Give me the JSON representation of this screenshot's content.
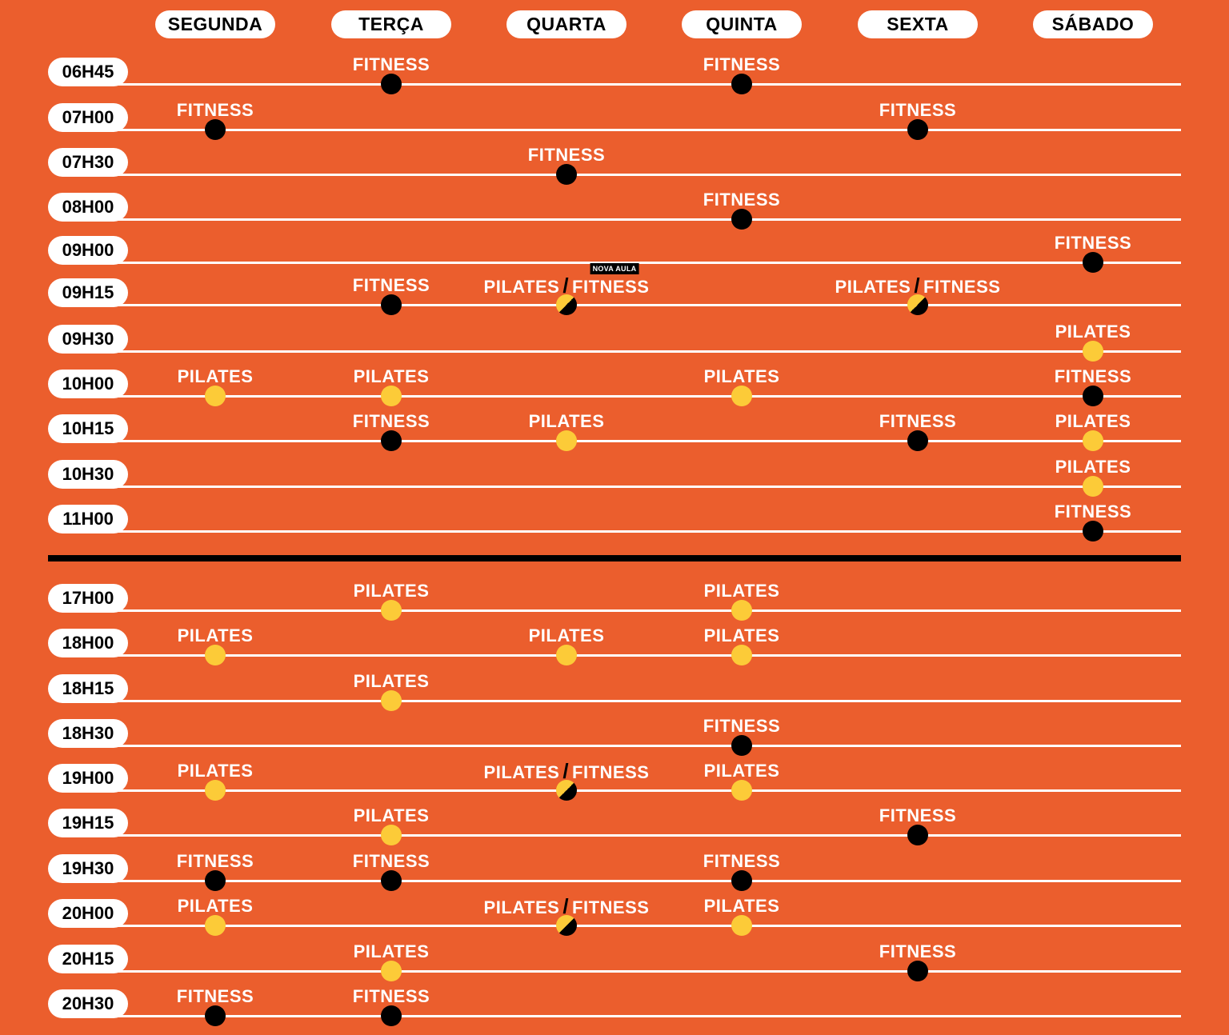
{
  "days": [
    "SEGUNDA",
    "TERÇA",
    "QUARTA",
    "QUINTA",
    "SEXTA",
    "SÁBADO"
  ],
  "colors": {
    "background": "#EB5E2D",
    "pilates": "#FCCB38",
    "fitness": "#000000",
    "line": "#FFFFFF"
  },
  "morning": [
    {
      "time": "06H45",
      "classes": [
        {
          "day": 1,
          "type": "fitness",
          "label": "FITNESS"
        },
        {
          "day": 3,
          "type": "fitness",
          "label": "FITNESS"
        }
      ]
    },
    {
      "time": "07H00",
      "classes": [
        {
          "day": 0,
          "type": "fitness",
          "label": "FITNESS"
        },
        {
          "day": 4,
          "type": "fitness",
          "label": "FITNESS"
        }
      ]
    },
    {
      "time": "07H30",
      "classes": [
        {
          "day": 2,
          "type": "fitness",
          "label": "FITNESS"
        }
      ]
    },
    {
      "time": "08H00",
      "classes": [
        {
          "day": 3,
          "type": "fitness",
          "label": "FITNESS"
        }
      ]
    },
    {
      "time": "09H00",
      "classes": [
        {
          "day": 5,
          "type": "fitness",
          "label": "FITNESS"
        }
      ]
    },
    {
      "time": "09H15",
      "classes": [
        {
          "day": 1,
          "type": "fitness",
          "label": "FITNESS"
        },
        {
          "day": 2,
          "type": "both",
          "label": "PILATES",
          "label2": "FITNESS",
          "badge": "NOVA AULA"
        },
        {
          "day": 4,
          "type": "both",
          "label": "PILATES",
          "label2": "FITNESS"
        }
      ]
    },
    {
      "time": "09H30",
      "classes": [
        {
          "day": 5,
          "type": "pilates",
          "label": "PILATES"
        }
      ]
    },
    {
      "time": "10H00",
      "classes": [
        {
          "day": 0,
          "type": "pilates",
          "label": "PILATES"
        },
        {
          "day": 1,
          "type": "pilates",
          "label": "PILATES"
        },
        {
          "day": 3,
          "type": "pilates",
          "label": "PILATES"
        },
        {
          "day": 5,
          "type": "fitness",
          "label": "FITNESS"
        }
      ]
    },
    {
      "time": "10H15",
      "classes": [
        {
          "day": 1,
          "type": "fitness",
          "label": "FITNESS"
        },
        {
          "day": 2,
          "type": "pilates",
          "label": "PILATES"
        },
        {
          "day": 4,
          "type": "fitness",
          "label": "FITNESS"
        },
        {
          "day": 5,
          "type": "pilates",
          "label": "PILATES"
        }
      ]
    },
    {
      "time": "10H30",
      "classes": [
        {
          "day": 5,
          "type": "pilates",
          "label": "PILATES"
        }
      ]
    },
    {
      "time": "11H00",
      "classes": [
        {
          "day": 5,
          "type": "fitness",
          "label": "FITNESS"
        }
      ]
    }
  ],
  "evening": [
    {
      "time": "17H00",
      "classes": [
        {
          "day": 1,
          "type": "pilates",
          "label": "PILATES"
        },
        {
          "day": 3,
          "type": "pilates",
          "label": "PILATES"
        }
      ]
    },
    {
      "time": "18H00",
      "classes": [
        {
          "day": 0,
          "type": "pilates",
          "label": "PILATES"
        },
        {
          "day": 2,
          "type": "pilates",
          "label": "PILATES"
        },
        {
          "day": 3,
          "type": "pilates",
          "label": "PILATES"
        }
      ]
    },
    {
      "time": "18H15",
      "classes": [
        {
          "day": 1,
          "type": "pilates",
          "label": "PILATES"
        }
      ]
    },
    {
      "time": "18H30",
      "classes": [
        {
          "day": 3,
          "type": "fitness",
          "label": "FITNESS"
        }
      ]
    },
    {
      "time": "19H00",
      "classes": [
        {
          "day": 0,
          "type": "pilates",
          "label": "PILATES"
        },
        {
          "day": 2,
          "type": "both",
          "label": "PILATES",
          "label2": "FITNESS"
        },
        {
          "day": 3,
          "type": "pilates",
          "label": "PILATES"
        }
      ]
    },
    {
      "time": "19H15",
      "classes": [
        {
          "day": 1,
          "type": "pilates",
          "label": "PILATES"
        },
        {
          "day": 4,
          "type": "fitness",
          "label": "FITNESS"
        }
      ]
    },
    {
      "time": "19H30",
      "classes": [
        {
          "day": 0,
          "type": "fitness",
          "label": "FITNESS"
        },
        {
          "day": 1,
          "type": "fitness",
          "label": "FITNESS"
        },
        {
          "day": 3,
          "type": "fitness",
          "label": "FITNESS"
        }
      ]
    },
    {
      "time": "20H00",
      "classes": [
        {
          "day": 0,
          "type": "pilates",
          "label": "PILATES"
        },
        {
          "day": 2,
          "type": "both",
          "label": "PILATES",
          "label2": "FITNESS"
        },
        {
          "day": 3,
          "type": "pilates",
          "label": "PILATES"
        }
      ]
    },
    {
      "time": "20H15",
      "classes": [
        {
          "day": 1,
          "type": "pilates",
          "label": "PILATES"
        },
        {
          "day": 4,
          "type": "fitness",
          "label": "FITNESS"
        }
      ]
    },
    {
      "time": "20H30",
      "classes": [
        {
          "day": 0,
          "type": "fitness",
          "label": "FITNESS"
        },
        {
          "day": 1,
          "type": "fitness",
          "label": "FITNESS"
        }
      ]
    }
  ]
}
